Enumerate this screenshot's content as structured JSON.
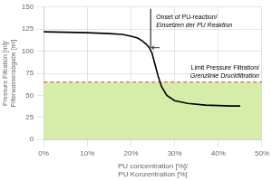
{
  "chart_data": {
    "type": "line",
    "x": [
      0.0,
      0.05,
      0.1,
      0.15,
      0.18,
      0.2,
      0.215,
      0.225,
      0.235,
      0.242,
      0.248,
      0.255,
      0.262,
      0.27,
      0.282,
      0.3,
      0.33,
      0.37,
      0.4,
      0.43,
      0.45
    ],
    "values": [
      122,
      121.5,
      121,
      120,
      119,
      117,
      115,
      112,
      108,
      104,
      98,
      85,
      72,
      60,
      50,
      44,
      41,
      39,
      38.5,
      38,
      38
    ],
    "color": "#000000",
    "xlabel": [
      "PU concentration [%]/",
      "PU Konzentration [%]"
    ],
    "ylabel": [
      "Pressure Filtration [ml]/",
      "Filterwasserabgabe [ml]"
    ],
    "xlim": [
      0,
      0.5
    ],
    "ylim": [
      0,
      150
    ],
    "xticks": [
      {
        "value": 0.0,
        "label": "0%"
      },
      {
        "value": 0.1,
        "label": "10%"
      },
      {
        "value": 0.2,
        "label": "20%"
      },
      {
        "value": 0.3,
        "label": "30%"
      },
      {
        "value": 0.4,
        "label": "40%"
      },
      {
        "value": 0.5,
        "label": "50%"
      }
    ],
    "yticks": [
      0,
      25,
      50,
      75,
      100,
      125,
      150
    ],
    "grid": true,
    "annotations": [
      {
        "text": [
          "Limit Pressure Filtration/",
          "Grenzlinie Druckfiltration"
        ],
        "y": 65,
        "color": "#cc4444",
        "fill_color": "#d6edaa"
      },
      {
        "text": [
          "Onset of PU-reaction/",
          "Einsetzen der PU Reaktion"
        ],
        "x": 0.245,
        "y": [
          104,
          148
        ]
      }
    ]
  }
}
